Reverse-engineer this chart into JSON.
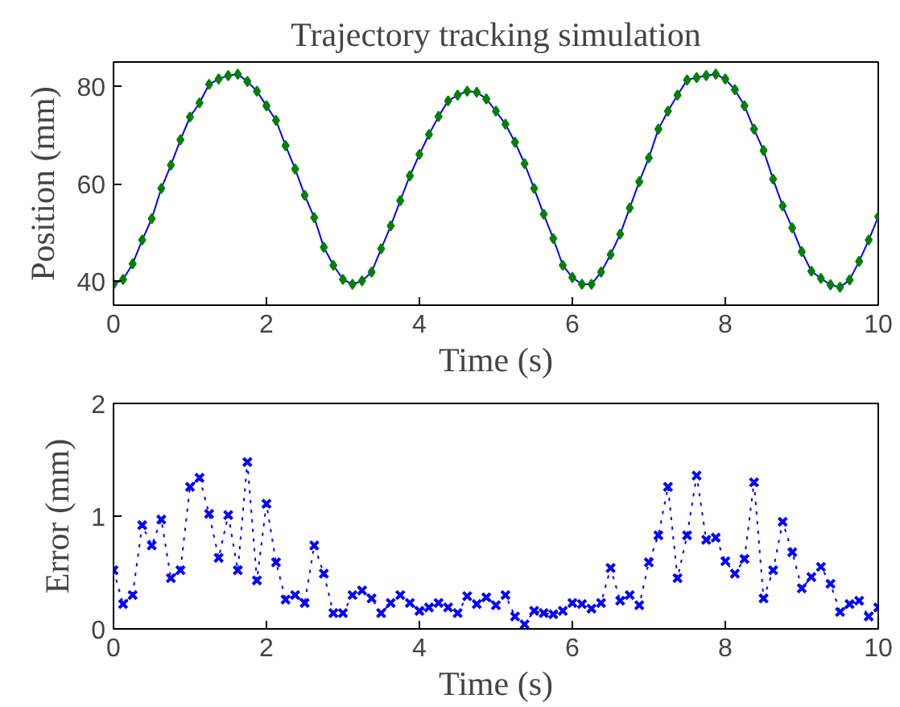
{
  "chart_data": [
    {
      "type": "line",
      "title": "Trajectory tracking simulation",
      "xlabel": "Time (s)",
      "ylabel": "Position (mm)",
      "x": [
        0,
        0.125,
        0.25,
        0.375,
        0.5,
        0.625,
        0.75,
        0.875,
        1,
        1.125,
        1.25,
        1.375,
        1.5,
        1.625,
        1.75,
        1.875,
        2,
        2.125,
        2.25,
        2.375,
        2.5,
        2.625,
        2.75,
        2.875,
        3,
        3.125,
        3.25,
        3.375,
        3.5,
        3.625,
        3.75,
        3.875,
        4,
        4.125,
        4.25,
        4.375,
        4.5,
        4.625,
        4.75,
        4.875,
        5,
        5.125,
        5.25,
        5.375,
        5.5,
        5.625,
        5.75,
        5.875,
        6,
        6.125,
        6.25,
        6.375,
        6.5,
        6.625,
        6.75,
        6.875,
        7,
        7.125,
        7.25,
        7.375,
        7.5,
        7.625,
        7.75,
        7.875,
        8,
        8.125,
        8.25,
        8.375,
        8.5,
        8.625,
        8.75,
        8.875,
        9,
        9.125,
        9.25,
        9.375,
        9.5,
        9.625,
        9.75,
        9.875,
        10
      ],
      "series": [
        {
          "type": "line",
          "marker": "none",
          "color": "#0000ff",
          "values": [
            39.3,
            40.3,
            43.5,
            48.4,
            52.8,
            59,
            63.8,
            69,
            73.7,
            76.6,
            80.4,
            81.5,
            82.2,
            82.5,
            81,
            79,
            76,
            73,
            67.8,
            63,
            57.6,
            53,
            46.9,
            43.2,
            40.3,
            39.3,
            40,
            41.8,
            46.6,
            51.3,
            56.5,
            61.6,
            66,
            70.1,
            73.8,
            77,
            78.2,
            79,
            78.8,
            77.4,
            74.9,
            72.2,
            68.5,
            64.1,
            59,
            53.7,
            48.7,
            43.2,
            40.7,
            39.3,
            39.3,
            41.8,
            45.4,
            49.6,
            55,
            60.4,
            65.3,
            71.2,
            74.9,
            78.2,
            81.3,
            81.8,
            82.2,
            82.5,
            81.5,
            79.3,
            76,
            71.2,
            66.8,
            60.9,
            55.4,
            50.9,
            46,
            42,
            40.5,
            39.2,
            38.7,
            40.2,
            44,
            48.4,
            53.2
          ]
        },
        {
          "type": "scatter",
          "marker": "diamond",
          "color": "#008000",
          "values": [
            39.3,
            40.3,
            43.5,
            48.4,
            52.8,
            59,
            63.8,
            69,
            73.7,
            76.6,
            80.4,
            81.5,
            82.2,
            82.5,
            81,
            79,
            76,
            73,
            67.8,
            63,
            57.6,
            53,
            46.9,
            43.2,
            40.3,
            39.3,
            40,
            41.8,
            46.6,
            51.3,
            56.5,
            61.6,
            66,
            70.1,
            73.8,
            77,
            78.2,
            79,
            78.8,
            77.4,
            74.9,
            72.2,
            68.5,
            64.1,
            59,
            53.7,
            48.7,
            43.2,
            40.7,
            39.3,
            39.3,
            41.8,
            45.4,
            49.6,
            55,
            60.4,
            65.3,
            71.2,
            74.9,
            78.2,
            81.3,
            81.8,
            82.2,
            82.5,
            81.5,
            79.3,
            76,
            71.2,
            66.8,
            60.9,
            55.4,
            50.9,
            46,
            42,
            40.5,
            39.2,
            38.7,
            40.2,
            44,
            48.4,
            53.2
          ]
        }
      ],
      "xlim": [
        0,
        10
      ],
      "xticks": [
        0,
        2,
        4,
        6,
        8,
        10
      ],
      "ylim": [
        35,
        85
      ],
      "yticks": [
        40,
        60,
        80
      ]
    },
    {
      "type": "line",
      "xlabel": "Time (s)",
      "ylabel": "Error (mm)",
      "x": [
        0,
        0.125,
        0.25,
        0.375,
        0.5,
        0.625,
        0.75,
        0.875,
        1,
        1.125,
        1.25,
        1.375,
        1.5,
        1.625,
        1.75,
        1.875,
        2,
        2.125,
        2.25,
        2.375,
        2.5,
        2.625,
        2.75,
        2.875,
        3,
        3.125,
        3.25,
        3.375,
        3.5,
        3.625,
        3.75,
        3.875,
        4,
        4.125,
        4.25,
        4.375,
        4.5,
        4.625,
        4.75,
        4.875,
        5,
        5.125,
        5.25,
        5.375,
        5.5,
        5.625,
        5.75,
        5.875,
        6,
        6.125,
        6.25,
        6.375,
        6.5,
        6.625,
        6.75,
        6.875,
        7,
        7.125,
        7.25,
        7.375,
        7.5,
        7.625,
        7.75,
        7.875,
        8,
        8.125,
        8.25,
        8.375,
        8.5,
        8.625,
        8.75,
        8.875,
        9,
        9.125,
        9.25,
        9.375,
        9.5,
        9.625,
        9.75,
        9.875,
        10
      ],
      "series": [
        {
          "color": "#0000ff",
          "marker": "cross",
          "line_style": "dotted",
          "values": [
            0.52,
            0.22,
            0.3,
            0.92,
            0.74,
            0.97,
            0.45,
            0.52,
            1.26,
            1.34,
            1.02,
            0.63,
            1.01,
            0.52,
            1.48,
            0.43,
            1.11,
            0.59,
            0.26,
            0.3,
            0.23,
            0.74,
            0.49,
            0.14,
            0.14,
            0.3,
            0.34,
            0.27,
            0.14,
            0.23,
            0.3,
            0.23,
            0.16,
            0.19,
            0.23,
            0.19,
            0.14,
            0.29,
            0.22,
            0.28,
            0.21,
            0.3,
            0.11,
            0.04,
            0.16,
            0.14,
            0.13,
            0.16,
            0.23,
            0.22,
            0.18,
            0.23,
            0.54,
            0.25,
            0.3,
            0.21,
            0.59,
            0.83,
            1.26,
            0.45,
            0.83,
            1.36,
            0.79,
            0.81,
            0.6,
            0.49,
            0.62,
            1.3,
            0.27,
            0.52,
            0.95,
            0.68,
            0.36,
            0.46,
            0.55,
            0.4,
            0.15,
            0.22,
            0.25,
            0.11,
            0.19
          ]
        }
      ],
      "xlim": [
        0,
        10
      ],
      "xticks": [
        0,
        2,
        4,
        6,
        8,
        10
      ],
      "ylim": [
        0,
        2
      ],
      "yticks": [
        0,
        1,
        2
      ]
    }
  ]
}
